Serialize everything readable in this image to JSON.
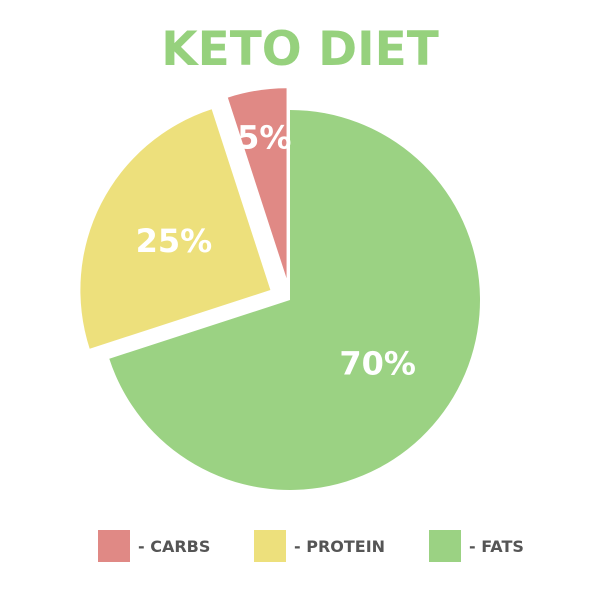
{
  "chart_data": {
    "type": "pie",
    "title": "KETO DIET",
    "title_color": "#96d17d",
    "label_color": "#ffffff",
    "slices": [
      {
        "label": "- FATS",
        "value": 70,
        "data_label": "70%",
        "color": "#9bd283",
        "exploded": false
      },
      {
        "label": "- PROTEIN",
        "value": 25,
        "data_label": "25%",
        "color": "#ede07c",
        "exploded": true
      },
      {
        "label": "- CARBS",
        "value": 5,
        "data_label": "5%",
        "color": "#e08985",
        "exploded": true
      }
    ],
    "legend": {
      "position": "bottom",
      "items": [
        {
          "label": "- CARBS",
          "color": "#e08985"
        },
        {
          "label": "- PROTEIN",
          "color": "#ede07c"
        },
        {
          "label": "- FATS",
          "color": "#9bd283"
        }
      ]
    }
  }
}
